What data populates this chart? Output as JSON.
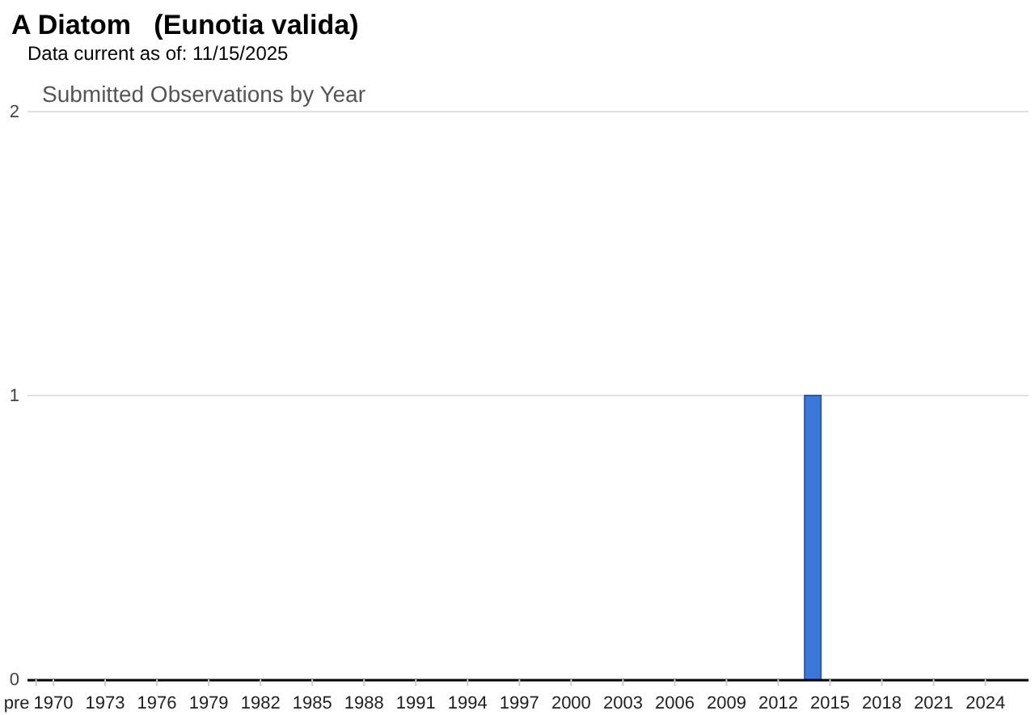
{
  "chart_data": {
    "type": "bar",
    "title": "A Diatom   (Eunotia valida)",
    "subtitle": "Data current as of: 11/15/2025",
    "annotations": [
      "Submitted Observations by Year"
    ],
    "categories": [
      "pre",
      "1970",
      null,
      null,
      "1973",
      null,
      null,
      "1976",
      null,
      null,
      "1979",
      null,
      null,
      "1982",
      null,
      null,
      "1985",
      null,
      null,
      "1988",
      null,
      null,
      "1991",
      null,
      null,
      "1994",
      null,
      null,
      "1997",
      null,
      null,
      "2000",
      null,
      null,
      "2003",
      null,
      null,
      "2006",
      null,
      null,
      "2009",
      null,
      null,
      "2012",
      null,
      null,
      "2015",
      null,
      null,
      "2018",
      null,
      null,
      "2021",
      null,
      null,
      "2024",
      null,
      null
    ],
    "values": [
      0,
      0,
      0,
      0,
      0,
      0,
      0,
      0,
      0,
      0,
      0,
      0,
      0,
      0,
      0,
      0,
      0,
      0,
      0,
      0,
      0,
      0,
      0,
      0,
      0,
      0,
      0,
      0,
      0,
      0,
      0,
      0,
      0,
      0,
      0,
      0,
      0,
      0,
      0,
      0,
      0,
      0,
      0,
      0,
      0,
      1,
      0,
      0,
      0,
      0,
      0,
      0,
      0,
      0,
      0,
      0,
      0,
      0
    ],
    "color": "#3c78d8",
    "ylim": [
      0,
      2
    ],
    "yticks": [
      0,
      1,
      2
    ],
    "grid": "y"
  }
}
